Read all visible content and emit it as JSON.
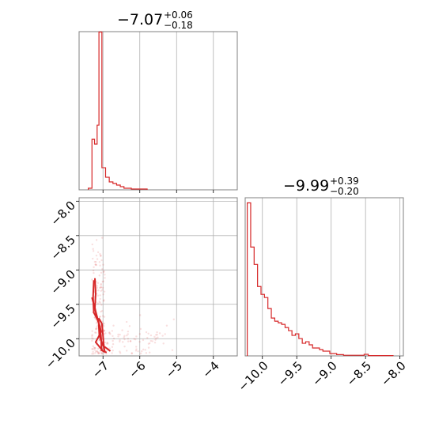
{
  "chart_data": [
    {
      "type": "histogram",
      "panel": "top-left",
      "title_value": "−7.07",
      "title_upper": "+0.06",
      "title_lower": "−0.18",
      "xlim": [
        -7.65,
        -3.35
      ],
      "xgrid": [
        -7,
        -6,
        -5,
        -4
      ],
      "bins": [
        [
          -7.4,
          -7.3,
          0.01
        ],
        [
          -7.3,
          -7.23,
          0.32
        ],
        [
          -7.23,
          -7.16,
          0.29
        ],
        [
          -7.16,
          -7.11,
          0.41
        ],
        [
          -7.11,
          -7.03,
          1.0
        ],
        [
          -7.03,
          -6.93,
          0.14
        ],
        [
          -6.93,
          -6.83,
          0.08
        ],
        [
          -6.83,
          -6.73,
          0.05
        ],
        [
          -6.73,
          -6.63,
          0.04
        ],
        [
          -6.63,
          -6.53,
          0.03
        ],
        [
          -6.53,
          -6.43,
          0.02
        ],
        [
          -6.43,
          -6.23,
          0.01
        ],
        [
          -6.23,
          -5.8,
          0.005
        ]
      ]
    },
    {
      "type": "scatter",
      "panel": "bottom-left",
      "xlim": [
        -7.65,
        -3.35
      ],
      "ylim": [
        -10.25,
        -7.95
      ],
      "xticks": [
        -7,
        -6,
        -5,
        -4
      ],
      "xtick_labels": [
        "−7",
        "−6",
        "−5",
        "−4"
      ],
      "yticks": [
        -8.0,
        -8.5,
        -9.0,
        -9.5,
        -10.0
      ],
      "ytick_labels": [
        "−8.0",
        "−8.5",
        "−9.0",
        "−9.5",
        "−10.0"
      ],
      "contours": [
        [
          [
            -7.22,
            -9.12
          ],
          [
            -7.2,
            -9.35
          ],
          [
            -7.22,
            -9.55
          ],
          [
            -7.17,
            -9.7
          ],
          [
            -7.08,
            -9.82
          ],
          [
            -7.05,
            -10.0
          ],
          [
            -7.04,
            -10.18
          ]
        ],
        [
          [
            -7.25,
            -9.15
          ],
          [
            -7.27,
            -9.4
          ],
          [
            -7.25,
            -9.62
          ],
          [
            -7.12,
            -9.75
          ],
          [
            -7.1,
            -9.95
          ],
          [
            -7.0,
            -10.1
          ],
          [
            -6.8,
            -10.18
          ]
        ],
        [
          [
            -7.12,
            -9.7
          ],
          [
            -7.03,
            -9.78
          ],
          [
            -7.0,
            -9.95
          ],
          [
            -6.98,
            -10.1
          ],
          [
            -6.95,
            -10.2
          ]
        ],
        [
          [
            -7.3,
            -9.4
          ],
          [
            -7.2,
            -9.6
          ],
          [
            -7.05,
            -9.9
          ],
          [
            -7.2,
            -10.05
          ],
          [
            -7.0,
            -10.18
          ],
          [
            -6.9,
            -10.2
          ]
        ]
      ]
    },
    {
      "type": "histogram",
      "panel": "bottom-right",
      "title_value": "−9.99",
      "title_upper": "+0.39",
      "title_lower": "−0.20",
      "xlim": [
        -10.25,
        -7.95
      ],
      "xticks": [
        -10.0,
        -9.5,
        -9.0,
        -8.5,
        -8.0
      ],
      "xtick_labels": [
        "−10.0",
        "−9.5",
        "−9.0",
        "−8.5",
        "−8.0"
      ],
      "bins": [
        [
          -10.22,
          -10.17,
          0.97
        ],
        [
          -10.17,
          -10.12,
          0.69
        ],
        [
          -10.12,
          -10.07,
          0.58
        ],
        [
          -10.07,
          -10.02,
          0.44
        ],
        [
          -10.02,
          -9.97,
          0.39
        ],
        [
          -9.97,
          -9.92,
          0.37
        ],
        [
          -9.92,
          -9.87,
          0.3
        ],
        [
          -9.87,
          -9.82,
          0.24
        ],
        [
          -9.82,
          -9.77,
          0.22
        ],
        [
          -9.77,
          -9.72,
          0.21
        ],
        [
          -9.72,
          -9.67,
          0.2
        ],
        [
          -9.67,
          -9.62,
          0.18
        ],
        [
          -9.62,
          -9.57,
          0.16
        ],
        [
          -9.57,
          -9.52,
          0.13
        ],
        [
          -9.52,
          -9.47,
          0.14
        ],
        [
          -9.47,
          -9.42,
          0.11
        ],
        [
          -9.42,
          -9.37,
          0.08
        ],
        [
          -9.37,
          -9.32,
          0.09
        ],
        [
          -9.32,
          -9.27,
          0.07
        ],
        [
          -9.27,
          -9.22,
          0.05
        ],
        [
          -9.22,
          -9.17,
          0.05
        ],
        [
          -9.17,
          -9.12,
          0.04
        ],
        [
          -9.12,
          -9.07,
          0.03
        ],
        [
          -9.07,
          -9.02,
          0.03
        ],
        [
          -9.02,
          -8.92,
          0.015
        ],
        [
          -8.92,
          -8.82,
          0.008
        ],
        [
          -8.82,
          -8.52,
          0.004
        ],
        [
          -8.52,
          -8.46,
          0.01
        ],
        [
          -8.46,
          -8.1,
          0.002
        ]
      ]
    }
  ],
  "colors": {
    "line": "#d62728",
    "axis": "#808080",
    "grid": "#b0b0b0"
  }
}
